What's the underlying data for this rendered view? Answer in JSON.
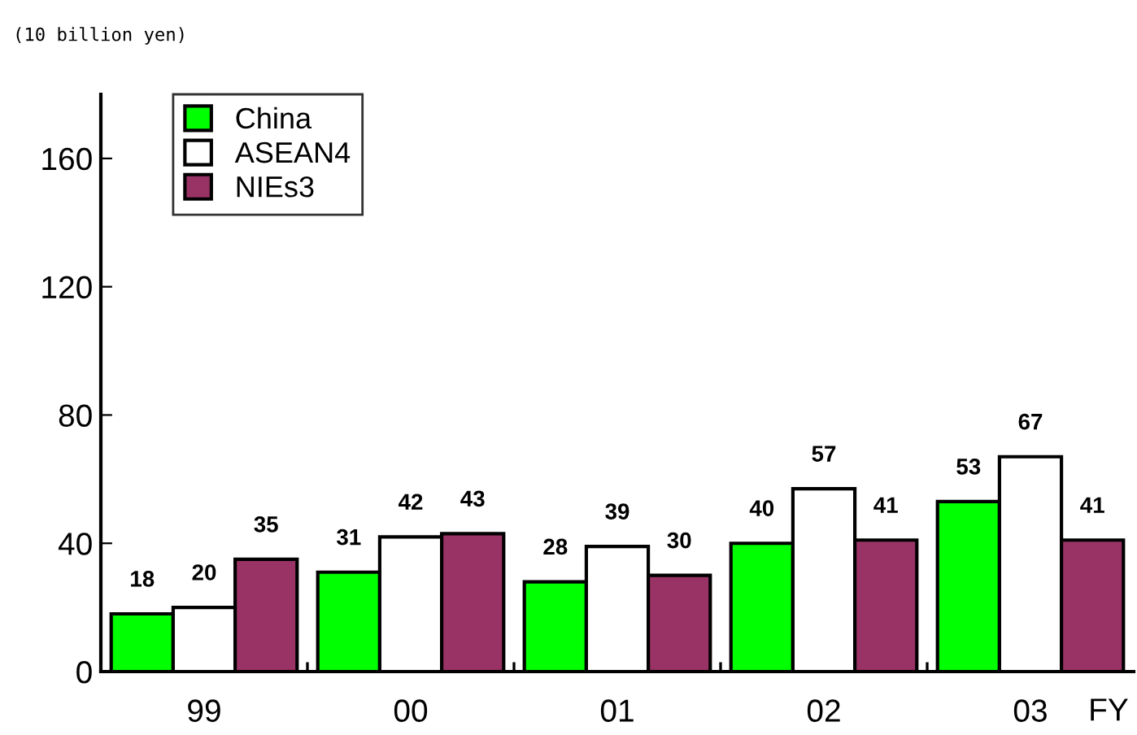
{
  "chart_data": {
    "type": "bar",
    "subtitle": "(10 billion yen)",
    "xlabel": "FY",
    "categories": [
      "99",
      "00",
      "01",
      "02",
      "03"
    ],
    "series": [
      {
        "name": "China",
        "color": "#00ff00",
        "values": [
          18,
          31,
          28,
          40,
          53
        ]
      },
      {
        "name": "ASEAN4",
        "color": "#ffffff",
        "values": [
          20,
          42,
          39,
          57,
          67
        ]
      },
      {
        "name": "NIEs3",
        "color": "#993366",
        "values": [
          35,
          43,
          30,
          41,
          41
        ]
      }
    ],
    "ylim": [
      0,
      180
    ],
    "yticks": [
      0,
      40,
      80,
      120,
      160
    ],
    "grid": false,
    "legend": "top left",
    "data_labels": true
  }
}
